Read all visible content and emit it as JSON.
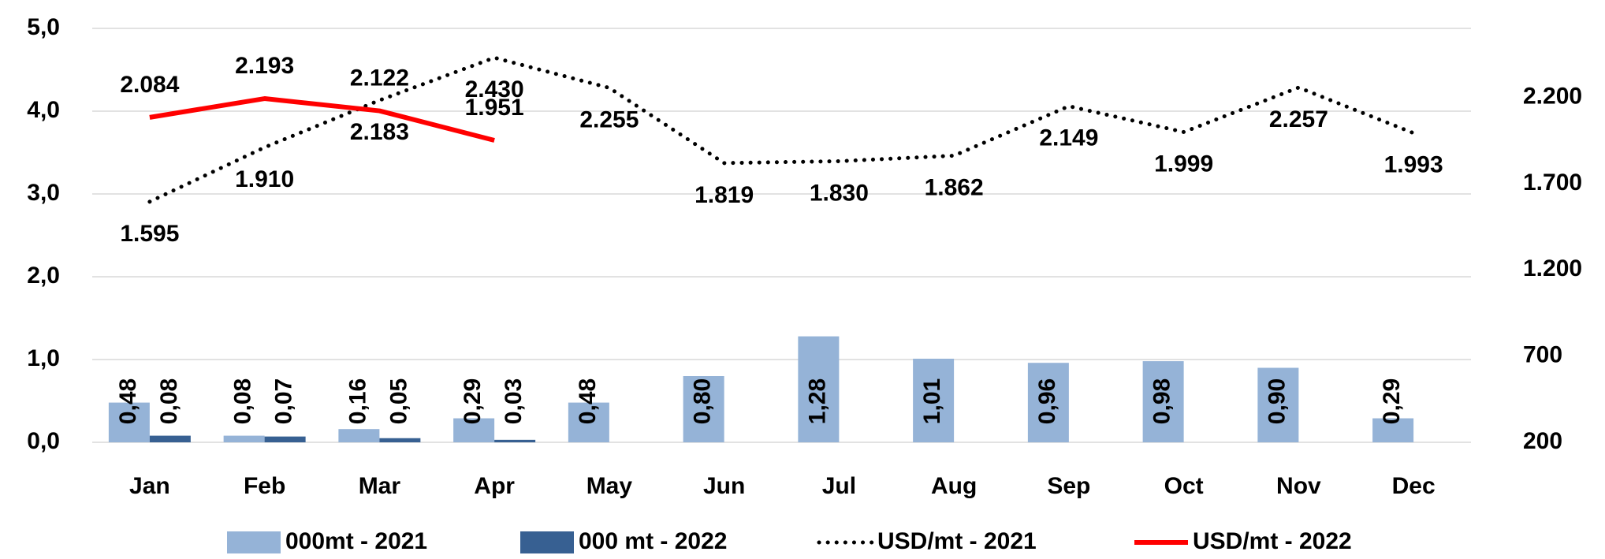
{
  "chart_data": {
    "type": "bar-line",
    "categories": [
      "Jan",
      "Feb",
      "Mar",
      "Apr",
      "May",
      "Jun",
      "Jul",
      "Aug",
      "Sep",
      "Oct",
      "Nov",
      "Dec"
    ],
    "ylim": [
      0,
      5
    ],
    "yticks": [
      {
        "value": 0,
        "label": "0,0"
      },
      {
        "value": 1,
        "label": "1,0"
      },
      {
        "value": 2,
        "label": "2,0"
      },
      {
        "value": 3,
        "label": "3,0"
      },
      {
        "value": 4,
        "label": "4,0"
      },
      {
        "value": 5,
        "label": "5,0"
      }
    ],
    "y2lim": [
      200,
      2600
    ],
    "y2ticks": [
      200,
      700,
      {
        "value": 1200,
        "label": "1.200"
      },
      {
        "value": 1700,
        "label": "1.700"
      },
      {
        "value": 2200,
        "label": "2.200"
      }
    ],
    "series": [
      {
        "name": "000mt - 2021",
        "type": "bar",
        "color": "#95b3d7",
        "values": [
          0.48,
          0.08,
          0.16,
          0.29,
          0.48,
          0.8,
          1.28,
          1.01,
          0.96,
          0.98,
          0.9,
          0.29
        ],
        "value_labels": [
          "0,48",
          "0,08",
          "0,16",
          "0,29",
          "0,48",
          "0,80",
          "1,28",
          "1,01",
          "0,96",
          "0,98",
          "0,90",
          "0,29"
        ]
      },
      {
        "name": "000 mt - 2022",
        "type": "bar",
        "color": "#376092",
        "values": [
          0.08,
          0.07,
          0.05,
          0.03,
          null,
          null,
          null,
          null,
          null,
          null,
          null,
          null
        ],
        "value_labels": [
          "0,08",
          "0,07",
          "0,05",
          "0,03",
          null,
          null,
          null,
          null,
          null,
          null,
          null,
          null
        ]
      },
      {
        "name": "USD/mt - 2021",
        "type": "line",
        "axis": "y2",
        "color": "#000000",
        "dotted": true,
        "values": [
          1595,
          1910,
          2183,
          2430,
          2255,
          1819,
          1830,
          1862,
          2149,
          1999,
          2257,
          1993
        ],
        "value_labels": [
          "1.595",
          "1.910",
          "2.183",
          "2.430",
          "2.255",
          "1.819",
          "1.830",
          "1.862",
          "2.149",
          "1.999",
          "2.257",
          "1.993"
        ]
      },
      {
        "name": "USD/mt - 2022",
        "type": "line",
        "axis": "y2",
        "color": "#ff0000",
        "dotted": false,
        "values": [
          2084,
          2193,
          2122,
          1951,
          null,
          null,
          null,
          null,
          null,
          null,
          null,
          null
        ],
        "value_labels": [
          "2.084",
          "2.193",
          "2.122",
          "1.951",
          null,
          null,
          null,
          null,
          null,
          null,
          null,
          null
        ]
      }
    ]
  }
}
